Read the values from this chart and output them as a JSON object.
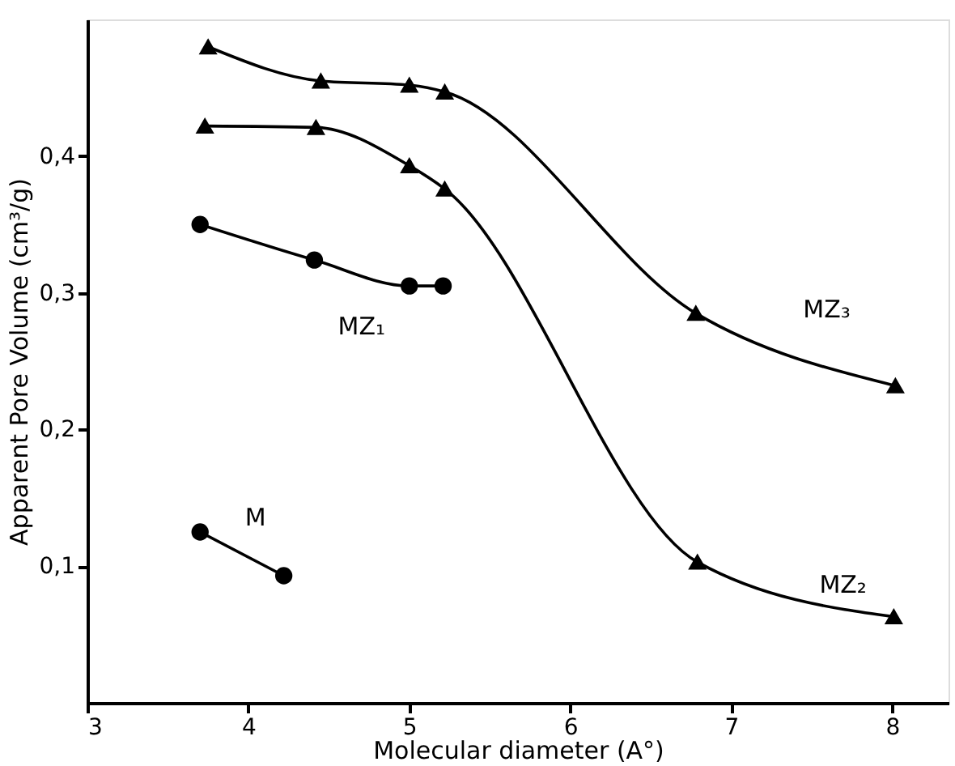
{
  "chart_data": {
    "type": "line",
    "xlabel": "Molecular diameter (A°)",
    "ylabel": "Apparent Pore Volume (cm³/g)",
    "xlim": [
      3,
      8.35
    ],
    "ylim": [
      0,
      0.5
    ],
    "xticks": [
      3,
      4,
      5,
      6,
      7,
      8
    ],
    "yticks": [
      {
        "value": 0.1,
        "label": "0,1"
      },
      {
        "value": 0.2,
        "label": "0,2"
      },
      {
        "value": 0.3,
        "label": "0,3"
      },
      {
        "value": 0.4,
        "label": "0,4"
      }
    ],
    "grid": false,
    "line_style": "solid",
    "series": [
      {
        "color": "#000000",
        "marker": "triangle",
        "x": [
          3.75,
          4.45,
          5.0,
          5.22,
          6.78,
          8.02
        ],
        "values": [
          0.48,
          0.455,
          0.452,
          0.447,
          0.285,
          0.232
        ]
      },
      {
        "color": "#000000",
        "marker": "triangle",
        "x": [
          3.73,
          4.42,
          5.0,
          5.22,
          6.79,
          8.01
        ],
        "values": [
          0.422,
          0.421,
          0.393,
          0.376,
          0.103,
          0.063
        ]
      },
      {
        "color": "#000000",
        "marker": "circle",
        "x": [
          3.7,
          4.41,
          5.0,
          5.21
        ],
        "values": [
          0.35,
          0.324,
          0.305,
          0.305
        ]
      },
      {
        "color": "#000000",
        "marker": "circle",
        "x": [
          3.7,
          4.22
        ],
        "values": [
          0.125,
          0.093
        ]
      }
    ],
    "annotations": [
      "MZ₃",
      "MZ₂",
      "MZ₁",
      "M"
    ]
  }
}
